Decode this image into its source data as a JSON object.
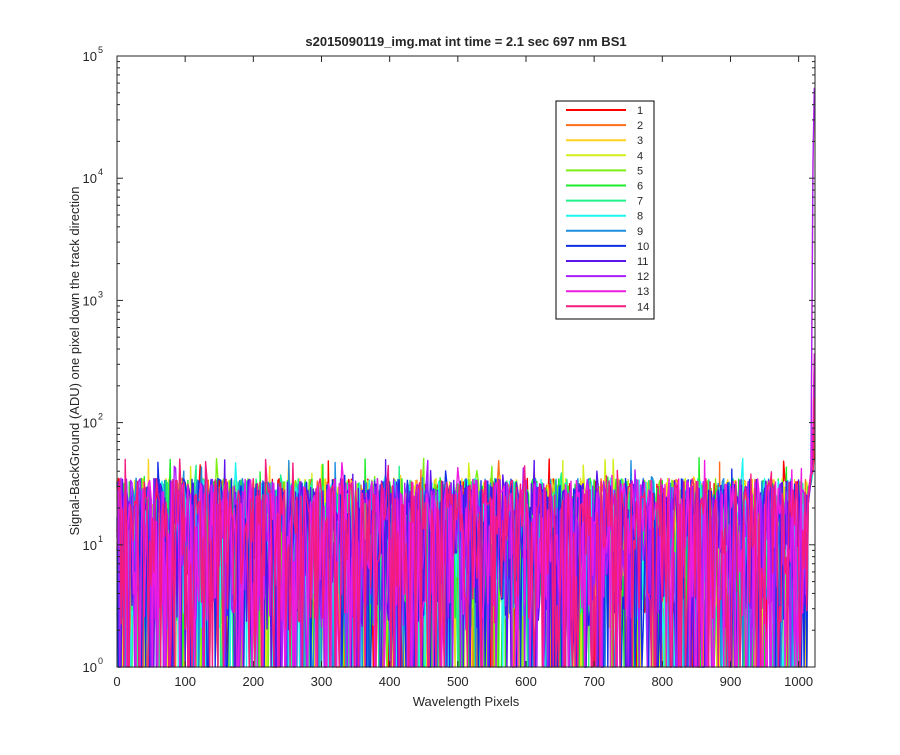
{
  "chart_data": {
    "type": "line",
    "title": "s2015090119_img.mat int time = 2.1 sec  697 nm BS1",
    "xlabel": "Wavelength Pixels",
    "ylabel": "Signal-BackGround (ADU) one pixel down the track direction",
    "xlim": [
      0,
      1024
    ],
    "ylim": [
      1,
      100000
    ],
    "yscale": "log",
    "grid": false,
    "legend_position": "top-right",
    "xticks": [
      "0",
      "100",
      "200",
      "300",
      "400",
      "500",
      "600",
      "700",
      "800",
      "900",
      "1000"
    ],
    "yticks": [
      {
        "base": "10",
        "exp": "0"
      },
      {
        "base": "10",
        "exp": "1"
      },
      {
        "base": "10",
        "exp": "2"
      },
      {
        "base": "10",
        "exp": "3"
      },
      {
        "base": "10",
        "exp": "4"
      },
      {
        "base": "10",
        "exp": "5"
      }
    ],
    "noise_description": {
      "pixel_range": [
        0,
        1012
      ],
      "typical_min": 1,
      "typical_max": 35,
      "occasional_max": 52
    },
    "series": [
      {
        "name": "1",
        "color": "#ff0000",
        "peak_at_1023": 60
      },
      {
        "name": "2",
        "color": "#ff6d1c",
        "peak_at_1023": 80
      },
      {
        "name": "3",
        "color": "#ffd11f",
        "peak_at_1023": 50000
      },
      {
        "name": "4",
        "color": "#d4ed1b",
        "peak_at_1023": 40
      },
      {
        "name": "5",
        "color": "#7bef12",
        "peak_at_1023": 40
      },
      {
        "name": "6",
        "color": "#1eec2b",
        "peak_at_1023": 40
      },
      {
        "name": "7",
        "color": "#22f08b",
        "peak_at_1023": 40
      },
      {
        "name": "8",
        "color": "#1ff5f0",
        "peak_at_1023": 40
      },
      {
        "name": "9",
        "color": "#1e8ee0",
        "peak_at_1023": 40
      },
      {
        "name": "10",
        "color": "#0f2fe6",
        "peak_at_1023": 40
      },
      {
        "name": "11",
        "color": "#5a14ec",
        "peak_at_1023": 300
      },
      {
        "name": "12",
        "color": "#ab1cff",
        "peak_at_1023": 55000
      },
      {
        "name": "13",
        "color": "#ee1be0",
        "peak_at_1023": 370
      },
      {
        "name": "14",
        "color": "#f31c7e",
        "peak_at_1023": 160
      }
    ]
  }
}
